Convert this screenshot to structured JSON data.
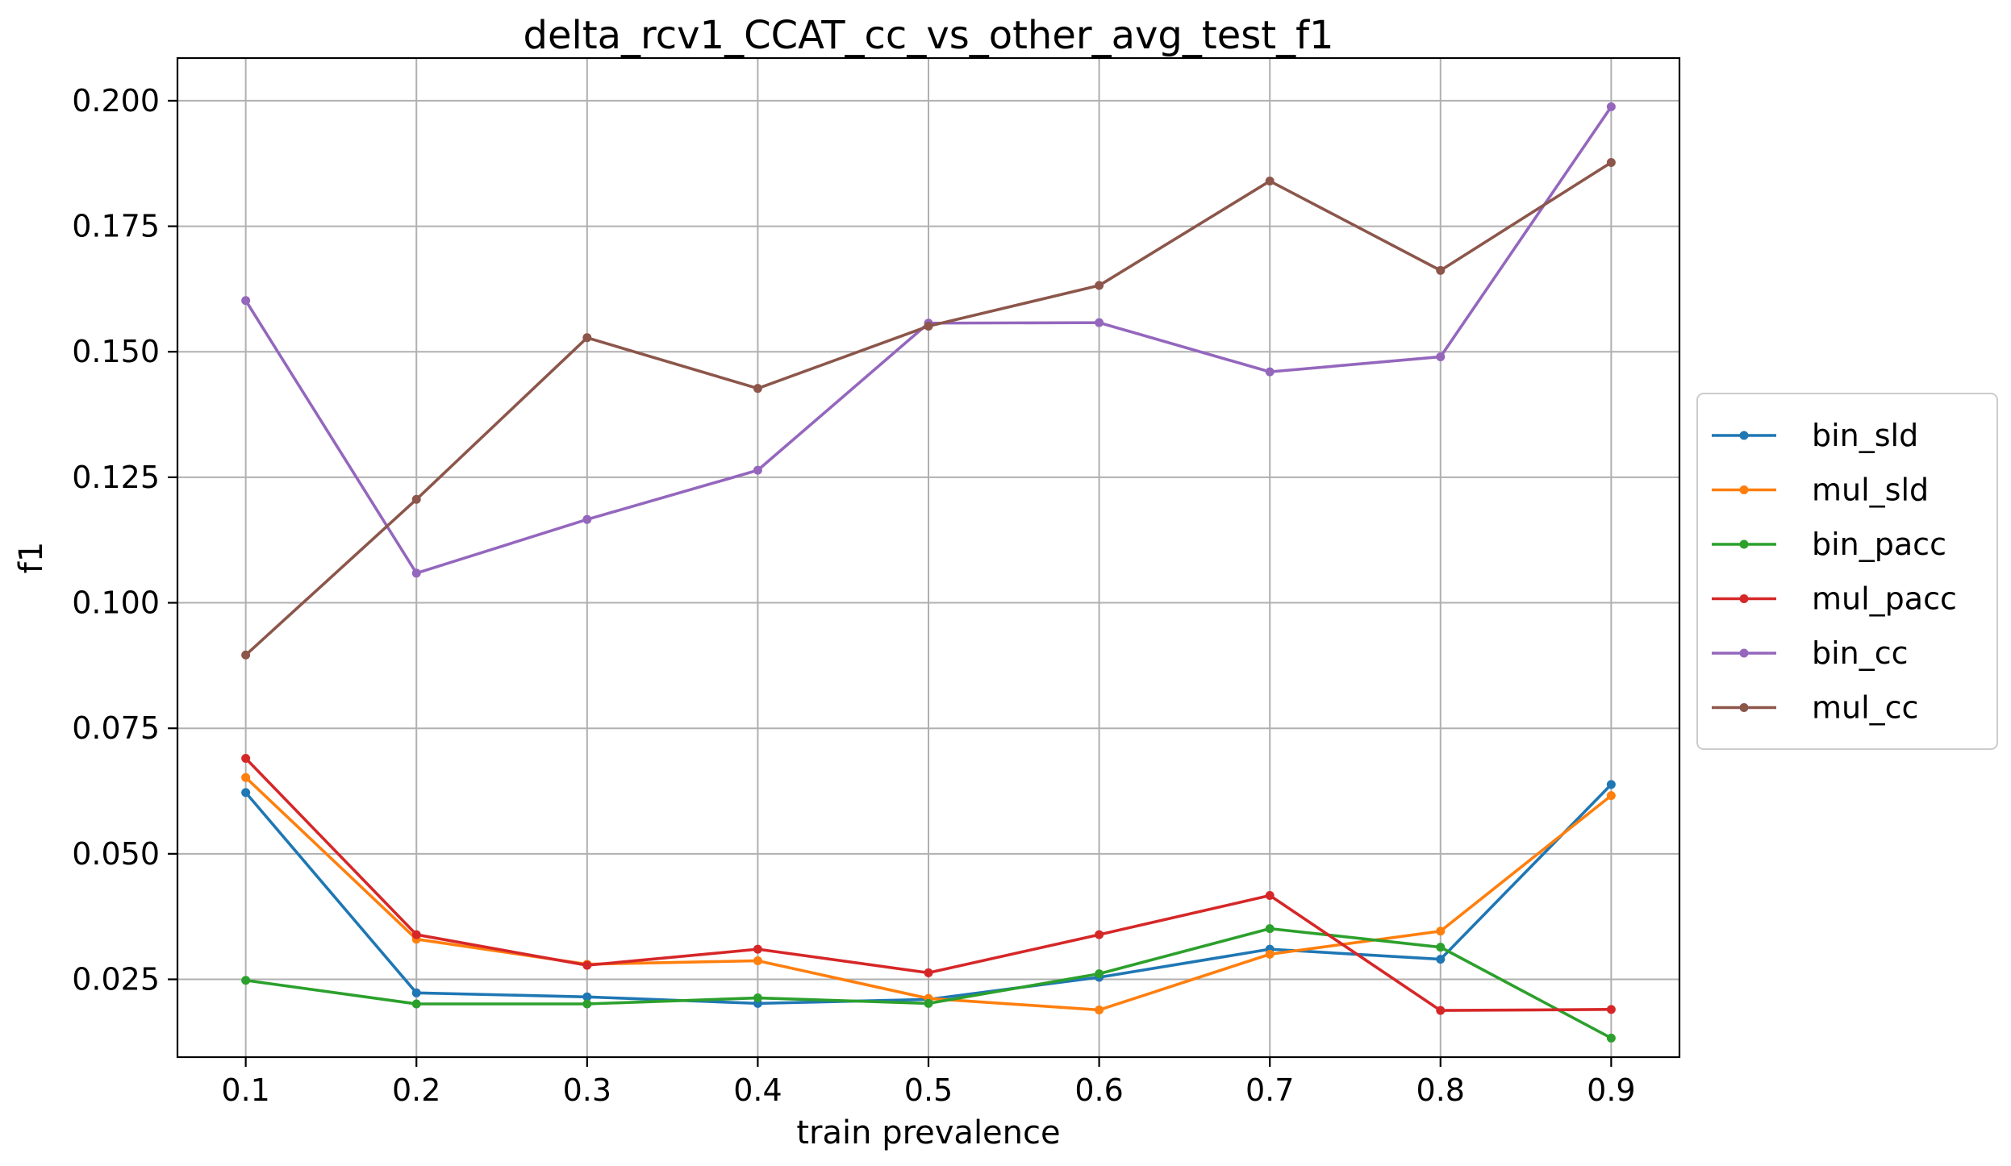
{
  "chart_data": {
    "type": "line",
    "title": "delta_rcv1_CCAT_cc_vs_other_avg_test_f1",
    "xlabel": "train prevalence",
    "ylabel": "f1",
    "x": [
      0.1,
      0.2,
      0.3,
      0.4,
      0.5,
      0.6,
      0.7,
      0.8,
      0.9
    ],
    "x_tick_labels": [
      "0.1",
      "0.2",
      "0.3",
      "0.4",
      "0.5",
      "0.6",
      "0.7",
      "0.8",
      "0.9"
    ],
    "y_ticks": [
      0.025,
      0.05,
      0.075,
      0.1,
      0.125,
      0.15,
      0.175,
      0.2
    ],
    "y_tick_labels": [
      "0.025",
      "0.050",
      "0.075",
      "0.100",
      "0.125",
      "0.150",
      "0.175",
      "0.200"
    ],
    "xlim": [
      0.06,
      0.94
    ],
    "ylim": [
      0.0095,
      0.2085
    ],
    "grid": true,
    "legend_position": "outside-right",
    "series": [
      {
        "name": "bin_sld",
        "color": "#1f77b4",
        "values": [
          0.0622,
          0.0223,
          0.0215,
          0.0202,
          0.021,
          0.0254,
          0.031,
          0.029,
          0.0638
        ]
      },
      {
        "name": "mul_sld",
        "color": "#ff7f0e",
        "values": [
          0.0652,
          0.033,
          0.028,
          0.0287,
          0.0212,
          0.0189,
          0.03,
          0.0346,
          0.0616
        ]
      },
      {
        "name": "bin_pacc",
        "color": "#2ca02c",
        "values": [
          0.0248,
          0.0201,
          0.0201,
          0.0213,
          0.0202,
          0.0261,
          0.0351,
          0.0314,
          0.0133
        ]
      },
      {
        "name": "mul_pacc",
        "color": "#d62728",
        "values": [
          0.069,
          0.0339,
          0.0278,
          0.031,
          0.0263,
          0.0339,
          0.0417,
          0.0188,
          0.019
        ]
      },
      {
        "name": "bin_cc",
        "color": "#9467bd",
        "values": [
          0.1602,
          0.1059,
          0.1166,
          0.1264,
          0.1557,
          0.1558,
          0.146,
          0.149,
          0.1988
        ]
      },
      {
        "name": "mul_cc",
        "color": "#8c564b",
        "values": [
          0.0896,
          0.1206,
          0.1528,
          0.1427,
          0.1551,
          0.1632,
          0.184,
          0.1662,
          0.1877
        ]
      }
    ]
  }
}
